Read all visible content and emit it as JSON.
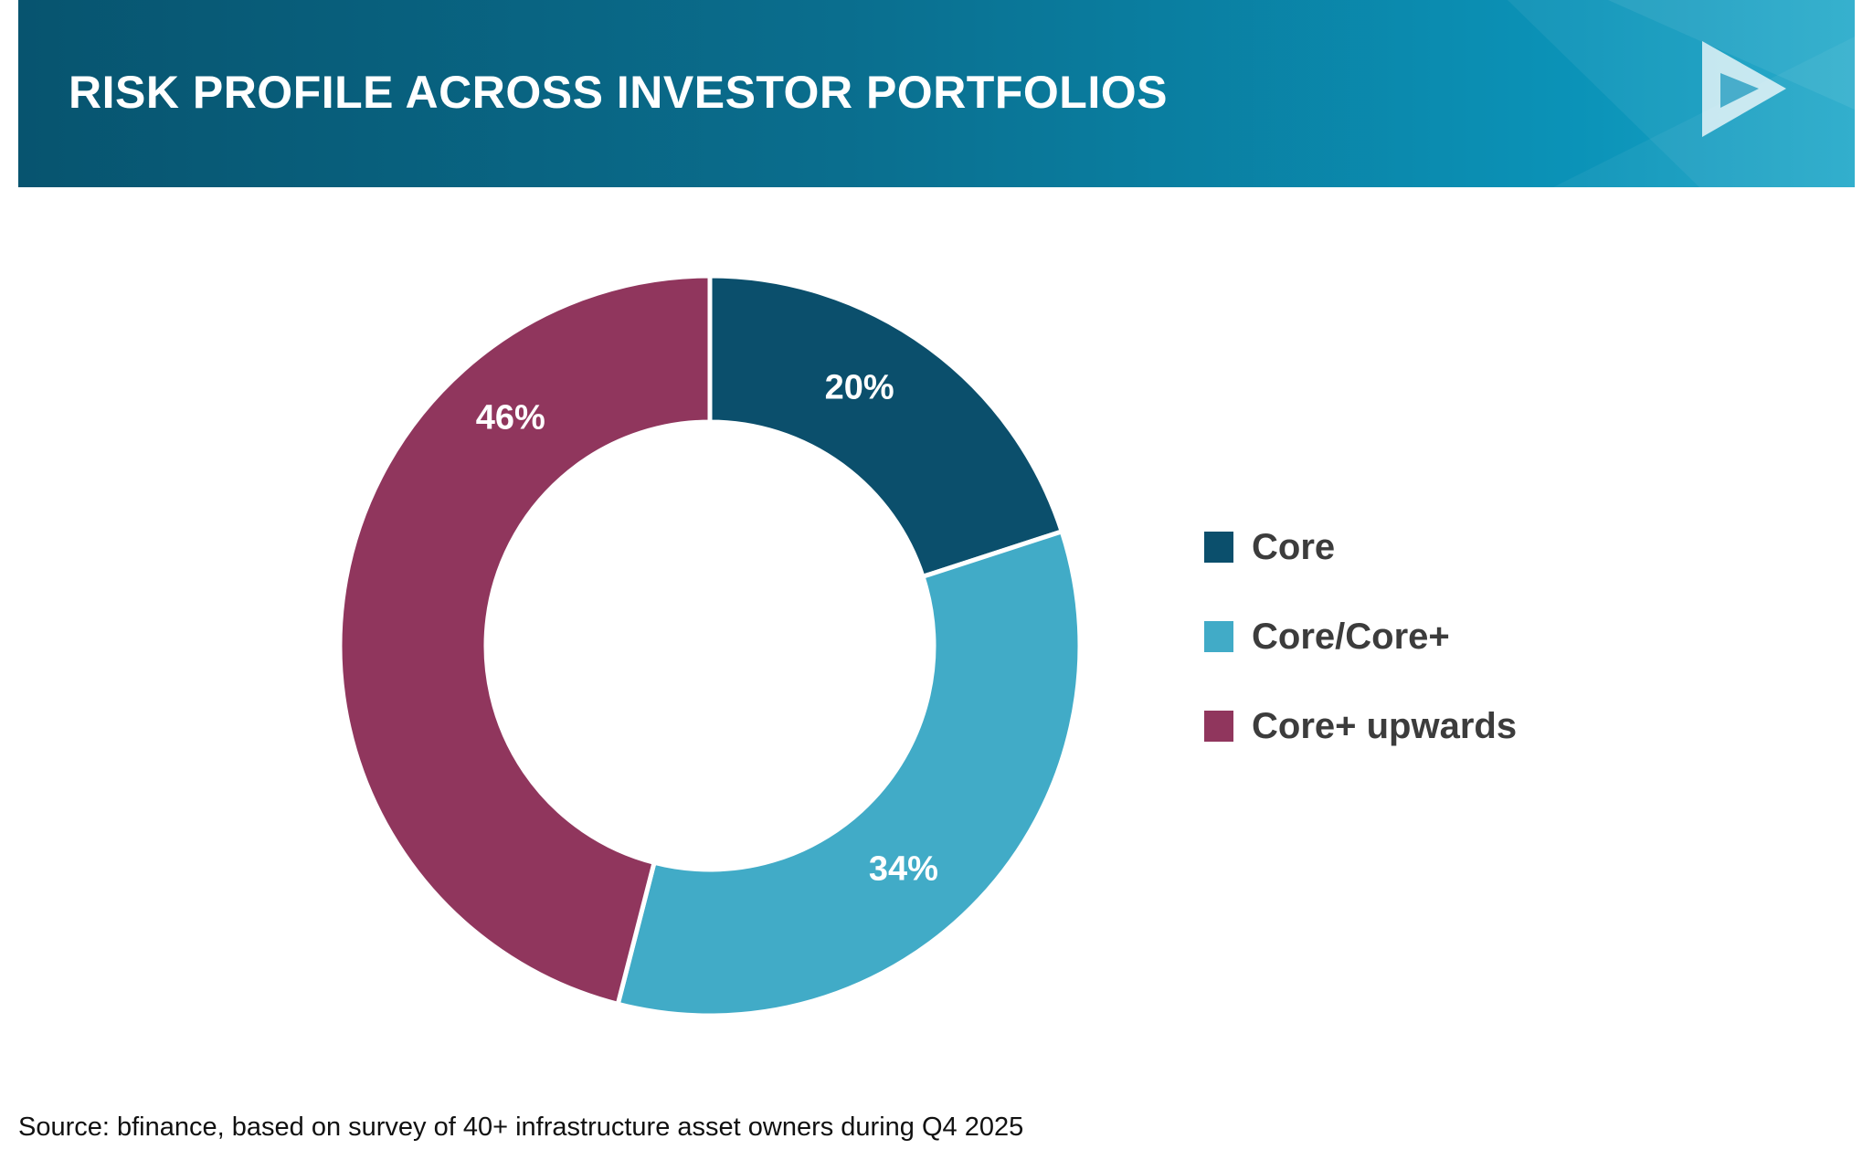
{
  "header": {
    "title": "RISK PROFILE ACROSS INVESTOR PORTFOLIOS"
  },
  "colors": {
    "core": "#0b4f6c",
    "core_core_plus": "#41abc7",
    "core_plus_upwards": "#90365d",
    "banner_dark": "#07546f",
    "banner_light": "#1aa6c8"
  },
  "chart_data": {
    "type": "pie",
    "donut": true,
    "categories": [
      "Core",
      "Core/Core+",
      "Core+ upwards"
    ],
    "values": [
      20,
      34,
      46
    ],
    "data_labels": [
      "20%",
      "34%",
      "46%"
    ],
    "colors": [
      "#0b4f6c",
      "#41abc7",
      "#90365d"
    ],
    "legend_position": "right",
    "title": ""
  },
  "legend": {
    "items": [
      {
        "label": "Core",
        "color": "#0b4f6c"
      },
      {
        "label": "Core/Core+",
        "color": "#41abc7"
      },
      {
        "label": "Core+ upwards",
        "color": "#90365d"
      }
    ]
  },
  "footer": {
    "source": "Source: bfinance, based on survey of 40+ infrastructure asset owners during Q4 2025"
  }
}
